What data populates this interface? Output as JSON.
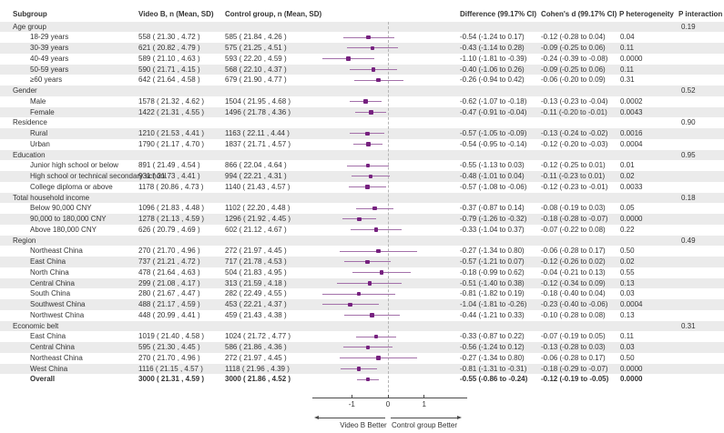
{
  "header": {
    "subgroup": "Subgroup",
    "video": "Video B, n (Mean, SD)",
    "control": "Control group, n (Mean, SD)",
    "difference": "Difference (99.17% CI)",
    "cohens_d": "Cohen's d (99.17% CI)",
    "p_heterogeneity": "P heterogeneity",
    "p_interaction": "P interaction"
  },
  "colors": {
    "marker": "#76217f",
    "ci_line": "#a471aa",
    "reference_line": "#b5b5b5",
    "stripe": "#ebebeb",
    "axis": "#4a4a4a",
    "text": "#333333"
  },
  "chart_data": {
    "type": "scatter",
    "subtype": "forest-plot",
    "x_axis": {
      "ticks": [
        -1,
        0,
        1
      ],
      "tick_labels": [
        "-1",
        "0",
        "1"
      ],
      "range": [
        -2.1,
        2.2
      ],
      "reference_line": 0
    },
    "better_labels": {
      "left": "Video B Better",
      "right": "Control group Better"
    },
    "rows": [
      {
        "type": "category",
        "label": "Age group",
        "p_interaction": "0.19"
      },
      {
        "type": "item",
        "label": "18-29 years",
        "video": "558 ( 21.30 , 4.72 )",
        "control": "585 ( 21.84 , 4.26 )",
        "difference": "-0.54 (-1.24 to 0.17)",
        "cohens_d": "-0.12 (-0.28 to 0.04)",
        "p_heterogeneity": "0.04",
        "est": -0.54,
        "lo": -1.24,
        "hi": 0.17
      },
      {
        "type": "item",
        "label": "30-39 years",
        "video": "621 ( 20.82 , 4.79 )",
        "control": "575 ( 21.25 , 4.51 )",
        "difference": "-0.43 (-1.14 to 0.28)",
        "cohens_d": "-0.09 (-0.25 to 0.06)",
        "p_heterogeneity": "0.11",
        "est": -0.43,
        "lo": -1.14,
        "hi": 0.28
      },
      {
        "type": "item",
        "label": "40-49 years",
        "video": "589 ( 21.10 , 4.63 )",
        "control": "593 ( 22.20 , 4.59 )",
        "difference": "-1.10 (-1.81 to -0.39)",
        "cohens_d": "-0.24 (-0.39 to -0.08)",
        "p_heterogeneity": "0.0000",
        "est": -1.1,
        "lo": -1.81,
        "hi": -0.39
      },
      {
        "type": "item",
        "label": "50-59 years",
        "video": "590 ( 21.71 , 4.15 )",
        "control": "568 ( 22.10 , 4.37 )",
        "difference": "-0.40 (-1.06 to 0.26)",
        "cohens_d": "-0.09 (-0.25 to 0.06)",
        "p_heterogeneity": "0.11",
        "est": -0.4,
        "lo": -1.06,
        "hi": 0.26
      },
      {
        "type": "item",
        "label": "≥60 years",
        "video": "642 ( 21.64 , 4.58 )",
        "control": "679 ( 21.90 , 4.77 )",
        "difference": "-0.26 (-0.94 to 0.42)",
        "cohens_d": "-0.06 (-0.20 to 0.09)",
        "p_heterogeneity": "0.31",
        "est": -0.26,
        "lo": -0.94,
        "hi": 0.42
      },
      {
        "type": "category",
        "label": "Gender",
        "p_interaction": "0.52"
      },
      {
        "type": "item",
        "label": "Male",
        "video": "1578 ( 21.32 , 4.62 )",
        "control": "1504 ( 21.95 , 4.68 )",
        "difference": "-0.62 (-1.07 to -0.18)",
        "cohens_d": "-0.13 (-0.23 to -0.04)",
        "p_heterogeneity": "0.0002",
        "est": -0.62,
        "lo": -1.07,
        "hi": -0.18
      },
      {
        "type": "item",
        "label": "Female",
        "video": "1422 ( 21.31 , 4.55 )",
        "control": "1496 ( 21.78 , 4.36 )",
        "difference": "-0.47 (-0.91 to -0.04)",
        "cohens_d": "-0.11 (-0.20 to -0.01)",
        "p_heterogeneity": "0.0043",
        "est": -0.47,
        "lo": -0.91,
        "hi": -0.04
      },
      {
        "type": "category",
        "label": "Residence",
        "p_interaction": "0.90"
      },
      {
        "type": "item",
        "label": "Rural",
        "video": "1210 ( 21.53 , 4.41 )",
        "control": "1163 ( 22.11 , 4.44 )",
        "difference": "-0.57 (-1.05 to -0.09)",
        "cohens_d": "-0.13 (-0.24 to -0.02)",
        "p_heterogeneity": "0.0016",
        "est": -0.57,
        "lo": -1.05,
        "hi": -0.09
      },
      {
        "type": "item",
        "label": "Urban",
        "video": "1790 ( 21.17 , 4.70 )",
        "control": "1837 ( 21.71 , 4.57 )",
        "difference": "-0.54 (-0.95 to -0.14)",
        "cohens_d": "-0.12 (-0.20 to -0.03)",
        "p_heterogeneity": "0.0004",
        "est": -0.54,
        "lo": -0.95,
        "hi": -0.14
      },
      {
        "type": "category",
        "label": "Education",
        "p_interaction": "0.95"
      },
      {
        "type": "item",
        "label": "Junior high school or below",
        "video": "891 ( 21.49 , 4.54 )",
        "control": "866 ( 22.04 , 4.64 )",
        "difference": "-0.55 (-1.13 to 0.03)",
        "cohens_d": "-0.12 (-0.25 to 0.01)",
        "p_heterogeneity": "0.01",
        "est": -0.55,
        "lo": -1.13,
        "hi": 0.03
      },
      {
        "type": "item",
        "label": "High school or technical secondary school",
        "video": "931 ( 21.73 , 4.41 )",
        "control": "994 ( 22.21 , 4.31 )",
        "difference": "-0.48 (-1.01 to 0.04)",
        "cohens_d": "-0.11 (-0.23 to 0.01)",
        "p_heterogeneity": "0.02",
        "est": -0.48,
        "lo": -1.01,
        "hi": 0.04
      },
      {
        "type": "item",
        "label": "College diploma or above",
        "video": "1178 ( 20.86 , 4.73 )",
        "control": "1140 ( 21.43 , 4.57 )",
        "difference": "-0.57 (-1.08 to -0.06)",
        "cohens_d": "-0.12 (-0.23 to -0.01)",
        "p_heterogeneity": "0.0033",
        "est": -0.57,
        "lo": -1.08,
        "hi": -0.06
      },
      {
        "type": "category",
        "label": "Total household income",
        "p_interaction": "0.18"
      },
      {
        "type": "item",
        "label": "Below 90,000 CNY",
        "video": "1096 ( 21.83 , 4.48 )",
        "control": "1102 ( 22.20 , 4.48 )",
        "difference": "-0.37 (-0.87 to 0.14)",
        "cohens_d": "-0.08 (-0.19 to 0.03)",
        "p_heterogeneity": "0.05",
        "est": -0.37,
        "lo": -0.87,
        "hi": 0.14
      },
      {
        "type": "item",
        "label": "90,000 to 180,000 CNY",
        "video": "1278 ( 21.13 , 4.59 )",
        "control": "1296 ( 21.92 , 4.45 )",
        "difference": "-0.79 (-1.26 to -0.32)",
        "cohens_d": "-0.18 (-0.28 to -0.07)",
        "p_heterogeneity": "0.0000",
        "est": -0.79,
        "lo": -1.26,
        "hi": -0.32
      },
      {
        "type": "item",
        "label": "Above 180,000 CNY",
        "video": "626 ( 20.79 , 4.69 )",
        "control": "602 ( 21.12 , 4.67 )",
        "difference": "-0.33 (-1.04 to 0.37)",
        "cohens_d": "-0.07 (-0.22 to 0.08)",
        "p_heterogeneity": "0.22",
        "est": -0.33,
        "lo": -1.04,
        "hi": 0.37
      },
      {
        "type": "category",
        "label": "Region",
        "p_interaction": "0.49"
      },
      {
        "type": "item",
        "label": "Northeast China",
        "video": "270 ( 21.70 , 4.96 )",
        "control": "272 ( 21.97 , 4.45 )",
        "difference": "-0.27 (-1.34 to 0.80)",
        "cohens_d": "-0.06 (-0.28 to 0.17)",
        "p_heterogeneity": "0.50",
        "est": -0.27,
        "lo": -1.34,
        "hi": 0.8
      },
      {
        "type": "item",
        "label": "East China",
        "video": "737 ( 21.21 , 4.72 )",
        "control": "717 ( 21.78 , 4.53 )",
        "difference": "-0.57 (-1.21 to 0.07)",
        "cohens_d": "-0.12 (-0.26 to 0.02)",
        "p_heterogeneity": "0.02",
        "est": -0.57,
        "lo": -1.21,
        "hi": 0.07
      },
      {
        "type": "item",
        "label": "North China",
        "video": "478 ( 21.64 , 4.63 )",
        "control": "504 ( 21.83 , 4.95 )",
        "difference": "-0.18 (-0.99 to 0.62)",
        "cohens_d": "-0.04 (-0.21 to 0.13)",
        "p_heterogeneity": "0.55",
        "est": -0.18,
        "lo": -0.99,
        "hi": 0.62
      },
      {
        "type": "item",
        "label": "Central China",
        "video": "299 ( 21.08 , 4.17 )",
        "control": "313 ( 21.59 , 4.18 )",
        "difference": "-0.51 (-1.40 to 0.38)",
        "cohens_d": "-0.12 (-0.34 to 0.09)",
        "p_heterogeneity": "0.13",
        "est": -0.51,
        "lo": -1.4,
        "hi": 0.38
      },
      {
        "type": "item",
        "label": "South China",
        "video": "280 ( 21.67 , 4.47 )",
        "control": "282 ( 22.49 , 4.55 )",
        "difference": "-0.81 (-1.82 to 0.19)",
        "cohens_d": "-0.18 (-0.40 to 0.04)",
        "p_heterogeneity": "0.03",
        "est": -0.81,
        "lo": -1.82,
        "hi": 0.19
      },
      {
        "type": "item",
        "label": "Southwest China",
        "video": "488 ( 21.17 , 4.59 )",
        "control": "453 ( 22.21 , 4.37 )",
        "difference": "-1.04 (-1.81 to -0.26)",
        "cohens_d": "-0.23 (-0.40 to -0.06)",
        "p_heterogeneity": "0.0004",
        "est": -1.04,
        "lo": -1.81,
        "hi": -0.26
      },
      {
        "type": "item",
        "label": "Northwest China",
        "video": "448 ( 20.99 , 4.41 )",
        "control": "459 ( 21.43 , 4.38 )",
        "difference": "-0.44 (-1.21 to 0.33)",
        "cohens_d": "-0.10 (-0.28 to 0.08)",
        "p_heterogeneity": "0.13",
        "est": -0.44,
        "lo": -1.21,
        "hi": 0.33
      },
      {
        "type": "category",
        "label": "Economic belt",
        "p_interaction": "0.31"
      },
      {
        "type": "item",
        "label": "East China",
        "video": "1019 ( 21.40 , 4.58 )",
        "control": "1024 ( 21.72 , 4.77 )",
        "difference": "-0.33 (-0.87 to 0.22)",
        "cohens_d": "-0.07 (-0.19 to 0.05)",
        "p_heterogeneity": "0.11",
        "est": -0.33,
        "lo": -0.87,
        "hi": 0.22
      },
      {
        "type": "item",
        "label": "Central China",
        "video": "595 ( 21.30 , 4.45 )",
        "control": "586 ( 21.86 , 4.36 )",
        "difference": "-0.56 (-1.24 to 0.12)",
        "cohens_d": "-0.13 (-0.28 to 0.03)",
        "p_heterogeneity": "0.03",
        "est": -0.56,
        "lo": -1.24,
        "hi": 0.12
      },
      {
        "type": "item",
        "label": "Northeast China",
        "video": "270 ( 21.70 , 4.96 )",
        "control": "272 ( 21.97 , 4.45 )",
        "difference": "-0.27 (-1.34 to 0.80)",
        "cohens_d": "-0.06 (-0.28 to 0.17)",
        "p_heterogeneity": "0.50",
        "est": -0.27,
        "lo": -1.34,
        "hi": 0.8
      },
      {
        "type": "item",
        "label": "West China",
        "video": "1116 ( 21.15 , 4.57 )",
        "control": "1118 ( 21.96 , 4.39 )",
        "difference": "-0.81 (-1.31 to -0.31)",
        "cohens_d": "-0.18 (-0.29 to -0.07)",
        "p_heterogeneity": "0.0000",
        "est": -0.81,
        "lo": -1.31,
        "hi": -0.31
      },
      {
        "type": "overall",
        "label": "Overall",
        "video": "3000 ( 21.31 , 4.59 )",
        "control": "3000 ( 21.86 , 4.52 )",
        "difference": "-0.55 (-0.86 to -0.24)",
        "cohens_d": "-0.12 (-0.19 to -0.05)",
        "p_heterogeneity": "0.0000",
        "est": -0.55,
        "lo": -0.86,
        "hi": -0.24
      }
    ]
  }
}
